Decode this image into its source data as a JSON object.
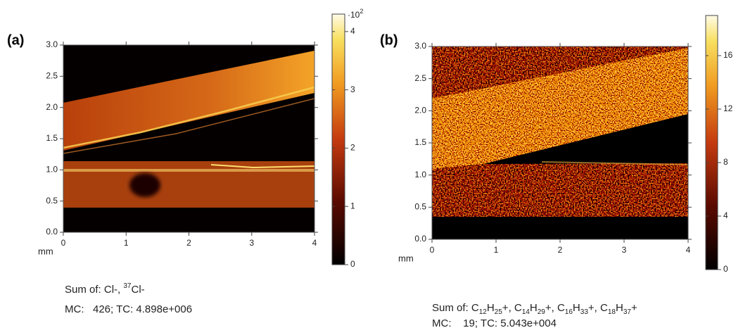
{
  "panels": [
    {
      "label": "(a)",
      "x_unit": "mm",
      "xlim": [
        0,
        4
      ],
      "xticks": [
        0,
        1,
        2,
        3,
        4
      ],
      "ylim": [
        0,
        3
      ],
      "yticks": [
        {
          "value": 0,
          "label": "0.0"
        },
        {
          "value": 0.5,
          "label": "0.5"
        },
        {
          "value": 1,
          "label": "1.0"
        },
        {
          "value": 1.5,
          "label": "1.5"
        },
        {
          "value": 2,
          "label": "2.0"
        },
        {
          "value": 2.5,
          "label": "2.5"
        },
        {
          "value": 3,
          "label": "3.0"
        }
      ],
      "colorbar": {
        "lim": [
          0,
          4.3
        ],
        "ticks": [
          0,
          1,
          2,
          3,
          4
        ],
        "multiplier": {
          "base": "·10",
          "exponent": "2"
        }
      },
      "caption": {
        "prefix": "Sum of: ",
        "separator": ", ",
        "species": [
          [
            {
              "text": "Cl-"
            }
          ],
          [
            {
              "sup": "37"
            },
            {
              "text": "Cl-"
            }
          ]
        ],
        "stats": "MC:   426; TC: 4.898e+006"
      }
    },
    {
      "label": "(b)",
      "x_unit": "mm",
      "xlim": [
        0,
        4
      ],
      "xticks": [
        0,
        1,
        2,
        3,
        4
      ],
      "ylim": [
        0,
        3
      ],
      "yticks": [
        {
          "value": 0,
          "label": "0.0"
        },
        {
          "value": 0.5,
          "label": "0.5"
        },
        {
          "value": 1,
          "label": "1.0"
        },
        {
          "value": 1.5,
          "label": "1.5"
        },
        {
          "value": 2,
          "label": "2.0"
        },
        {
          "value": 2.5,
          "label": "2.5"
        },
        {
          "value": 3,
          "label": "3.0"
        }
      ],
      "colorbar": {
        "lim": [
          0,
          19
        ],
        "ticks": [
          0,
          4,
          8,
          12,
          16
        ]
      },
      "caption": {
        "prefix": "Sum of: ",
        "separator": ", ",
        "species": [
          [
            {
              "text": "C"
            },
            {
              "sub": "12"
            },
            {
              "text": "H"
            },
            {
              "sub": "25"
            },
            {
              "text": "+"
            }
          ],
          [
            {
              "text": "C"
            },
            {
              "sub": "14"
            },
            {
              "text": "H"
            },
            {
              "sub": "29"
            },
            {
              "text": "+"
            }
          ],
          [
            {
              "text": "C"
            },
            {
              "sub": "16"
            },
            {
              "text": "H"
            },
            {
              "sub": "33"
            },
            {
              "text": "+"
            }
          ],
          [
            {
              "text": "C"
            },
            {
              "sub": "18"
            },
            {
              "text": "H"
            },
            {
              "sub": "37"
            },
            {
              "text": "+"
            }
          ]
        ],
        "stats": "MC:    19; TC: 5.043e+004"
      }
    }
  ]
}
